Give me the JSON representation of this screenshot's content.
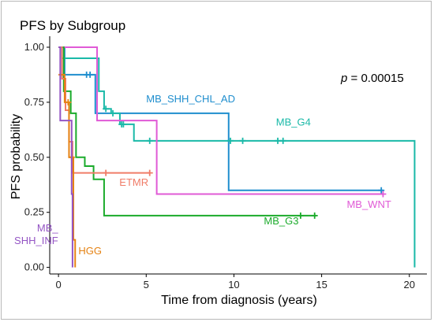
{
  "chart_data": {
    "type": "line",
    "title": "PFS by Subgroup",
    "xlabel": "Time from diagnosis (years)",
    "ylabel": "PFS probability",
    "xlim": [
      -0.5,
      21
    ],
    "ylim": [
      -0.03,
      1.05
    ],
    "x_ticks": [
      0,
      5,
      10,
      15,
      20
    ],
    "x_tick_labels": [
      "0",
      "5",
      "10",
      "15",
      "20"
    ],
    "y_ticks": [
      0,
      0.25,
      0.5,
      0.75,
      1.0
    ],
    "y_tick_labels": [
      "0.00",
      "0.25",
      "0.50",
      "0.75",
      "1.00"
    ],
    "grid": false,
    "annotation": {
      "p_label": "p",
      "p_value_text": " = 0.00015"
    },
    "series": [
      {
        "name": "MB_SHH_CHL_AD",
        "color": "#1f8ece",
        "steps": [
          [
            0,
            1.0
          ],
          [
            0.35,
            0.875
          ],
          [
            2.0,
            0.875
          ],
          [
            2.1,
            0.7
          ],
          [
            9.7,
            0.7
          ],
          [
            9.7,
            0.35
          ],
          [
            18.5,
            0.35
          ]
        ],
        "censors": [
          [
            1.6,
            0.875
          ],
          [
            1.8,
            0.875
          ],
          [
            18.4,
            0.35
          ]
        ],
        "label_text": "MB_SHH_CHL_AD",
        "label_at": [
          5.0,
          0.75
        ],
        "label_anchor": "start"
      },
      {
        "name": "MB_G4",
        "color": "#1ab9a8",
        "steps": [
          [
            0,
            1.0
          ],
          [
            0.2,
            0.95
          ],
          [
            2.0,
            0.95
          ],
          [
            2.3,
            0.8
          ],
          [
            2.6,
            0.72
          ],
          [
            3.0,
            0.7
          ],
          [
            3.5,
            0.65
          ],
          [
            4.3,
            0.575
          ],
          [
            20.3,
            0.575
          ],
          [
            20.3,
            0.0
          ]
        ],
        "censors": [
          [
            2.7,
            0.72
          ],
          [
            3.1,
            0.7
          ],
          [
            3.6,
            0.65
          ],
          [
            3.7,
            0.65
          ],
          [
            5.2,
            0.575
          ],
          [
            9.8,
            0.575
          ],
          [
            10.5,
            0.575
          ],
          [
            12.5,
            0.575
          ],
          [
            12.8,
            0.575
          ]
        ],
        "label_text": "MB_G4",
        "label_at": [
          12.4,
          0.645
        ],
        "label_anchor": "start"
      },
      {
        "name": "MB_WNT",
        "color": "#e05ad6",
        "steps": [
          [
            0,
            1.0
          ],
          [
            2.1,
            1.0
          ],
          [
            2.2,
            0.667
          ],
          [
            5.5,
            0.667
          ],
          [
            5.6,
            0.333
          ],
          [
            18.5,
            0.333
          ]
        ],
        "censors": [
          [
            18.5,
            0.333
          ]
        ],
        "label_text": "MB_WNT",
        "label_at": [
          17.7,
          0.27
        ],
        "label_anchor": "middle"
      },
      {
        "name": "MB_G3",
        "color": "#1bab2b",
        "steps": [
          [
            0,
            1.0
          ],
          [
            0.3,
            0.8
          ],
          [
            0.7,
            0.7
          ],
          [
            1.0,
            0.5
          ],
          [
            1.5,
            0.46
          ],
          [
            2.0,
            0.4
          ],
          [
            2.6,
            0.235
          ],
          [
            14.7,
            0.235
          ]
        ],
        "censors": [
          [
            13.8,
            0.235
          ],
          [
            14.6,
            0.235
          ]
        ],
        "label_text": "MB_G3",
        "label_at": [
          12.7,
          0.195
        ],
        "label_anchor": "middle"
      },
      {
        "name": "ETMR",
        "color": "#f07c68",
        "steps": [
          [
            0,
            1.0
          ],
          [
            0.2,
            0.857
          ],
          [
            0.4,
            0.714
          ],
          [
            0.6,
            0.571
          ],
          [
            0.8,
            0.429
          ],
          [
            5.2,
            0.429
          ]
        ],
        "censors": [
          [
            2.7,
            0.429
          ],
          [
            5.2,
            0.429
          ]
        ],
        "label_text": "ETMR",
        "label_at": [
          4.3,
          0.37
        ],
        "label_anchor": "middle"
      },
      {
        "name": "HGG",
        "color": "#e58213",
        "steps": [
          [
            0,
            0.875
          ],
          [
            0.35,
            0.75
          ],
          [
            0.6,
            0.5
          ],
          [
            0.85,
            0.125
          ],
          [
            0.95,
            0.0
          ]
        ],
        "censors": [
          [
            0.55,
            0.75
          ],
          [
            0.75,
            0.5
          ]
        ],
        "label_text": "HGG",
        "label_at": [
          1.8,
          0.06
        ],
        "label_anchor": "middle"
      },
      {
        "name": "MB_SHH_INF",
        "color": "#9455c4",
        "steps": [
          [
            0,
            1.0
          ],
          [
            0.1,
            0.667
          ],
          [
            0.75,
            0.667
          ],
          [
            0.75,
            0.333
          ],
          [
            0.8,
            0.0
          ]
        ],
        "censors": [],
        "label_text": "MB_",
        "label_text_line2": "SHH_INF",
        "label_at": [
          -0.02,
          0.135
        ],
        "label_anchor": "end"
      }
    ]
  }
}
